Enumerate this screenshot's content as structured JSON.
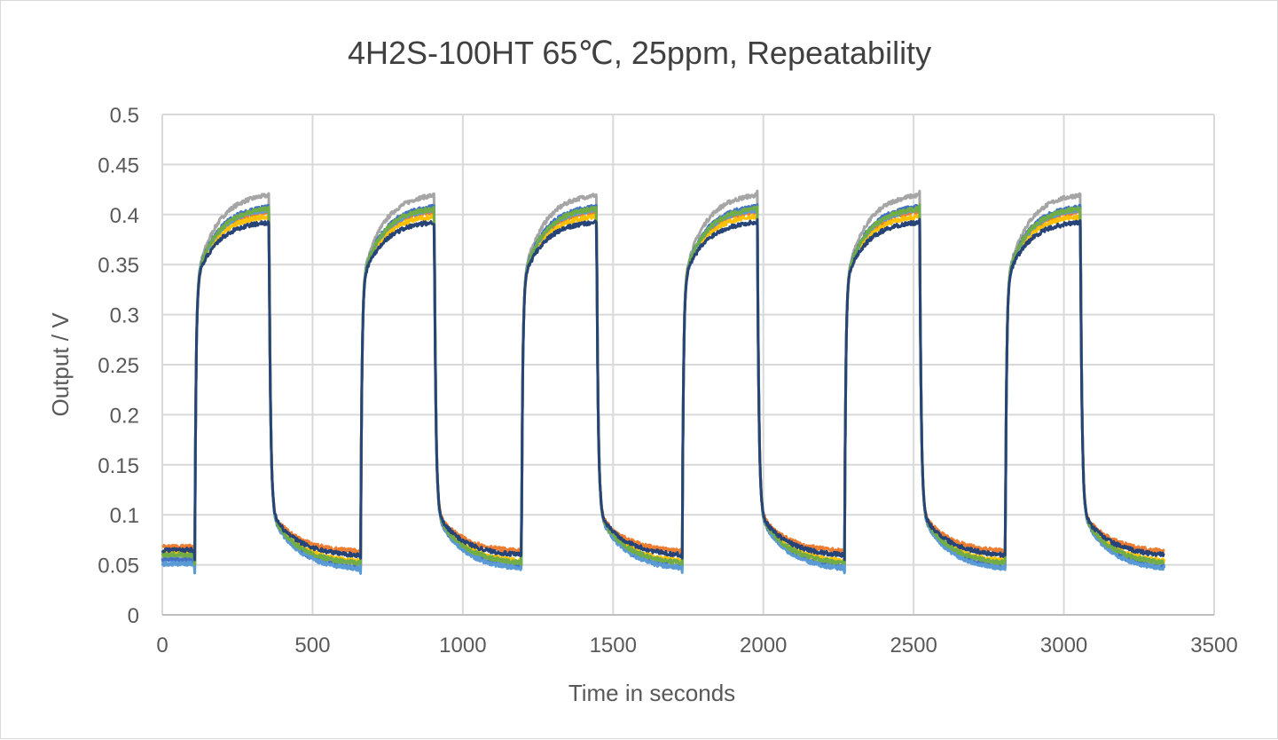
{
  "chart_data": {
    "type": "line",
    "title": "4H2S-100HT 65℃, 25ppm, Repeatability",
    "xlabel": "Time in seconds",
    "ylabel": "Output / V",
    "xlim": [
      0,
      3500
    ],
    "ylim": [
      0,
      0.5
    ],
    "x_ticks": [
      "0",
      "500",
      "1000",
      "1500",
      "2000",
      "2500",
      "3000",
      "3500"
    ],
    "y_ticks": [
      "0",
      "0.05",
      "0.1",
      "0.15",
      "0.2",
      "0.25",
      "0.3",
      "0.35",
      "0.4",
      "0.45",
      "0.5"
    ],
    "grid": true,
    "legend": "none",
    "pulses": [
      {
        "on": 108,
        "off": 355
      },
      {
        "on": 660,
        "off": 905
      },
      {
        "on": 1195,
        "off": 1445
      },
      {
        "on": 1730,
        "off": 1980
      },
      {
        "on": 2270,
        "off": 2520
      },
      {
        "on": 2805,
        "off": 3055
      }
    ],
    "x_end": 3335,
    "series": [
      {
        "color": "#a5a5a5",
        "baseline": 0.047,
        "peak": 0.422,
        "recovery_floor": 0.047
      },
      {
        "color": "#4472c4",
        "baseline": 0.045,
        "peak": 0.41,
        "recovery_floor": 0.045
      },
      {
        "color": "#ed7d31",
        "baseline": 0.058,
        "peak": 0.405,
        "recovery_floor": 0.062
      },
      {
        "color": "#ffc000",
        "baseline": 0.052,
        "peak": 0.4,
        "recovery_floor": 0.052
      },
      {
        "color": "#5b9bd5",
        "baseline": 0.041,
        "peak": 0.407,
        "recovery_floor": 0.044
      },
      {
        "color": "#70ad47",
        "baseline": 0.05,
        "peak": 0.408,
        "recovery_floor": 0.05
      },
      {
        "color": "#264478",
        "baseline": 0.055,
        "peak": 0.394,
        "recovery_floor": 0.058
      }
    ]
  }
}
